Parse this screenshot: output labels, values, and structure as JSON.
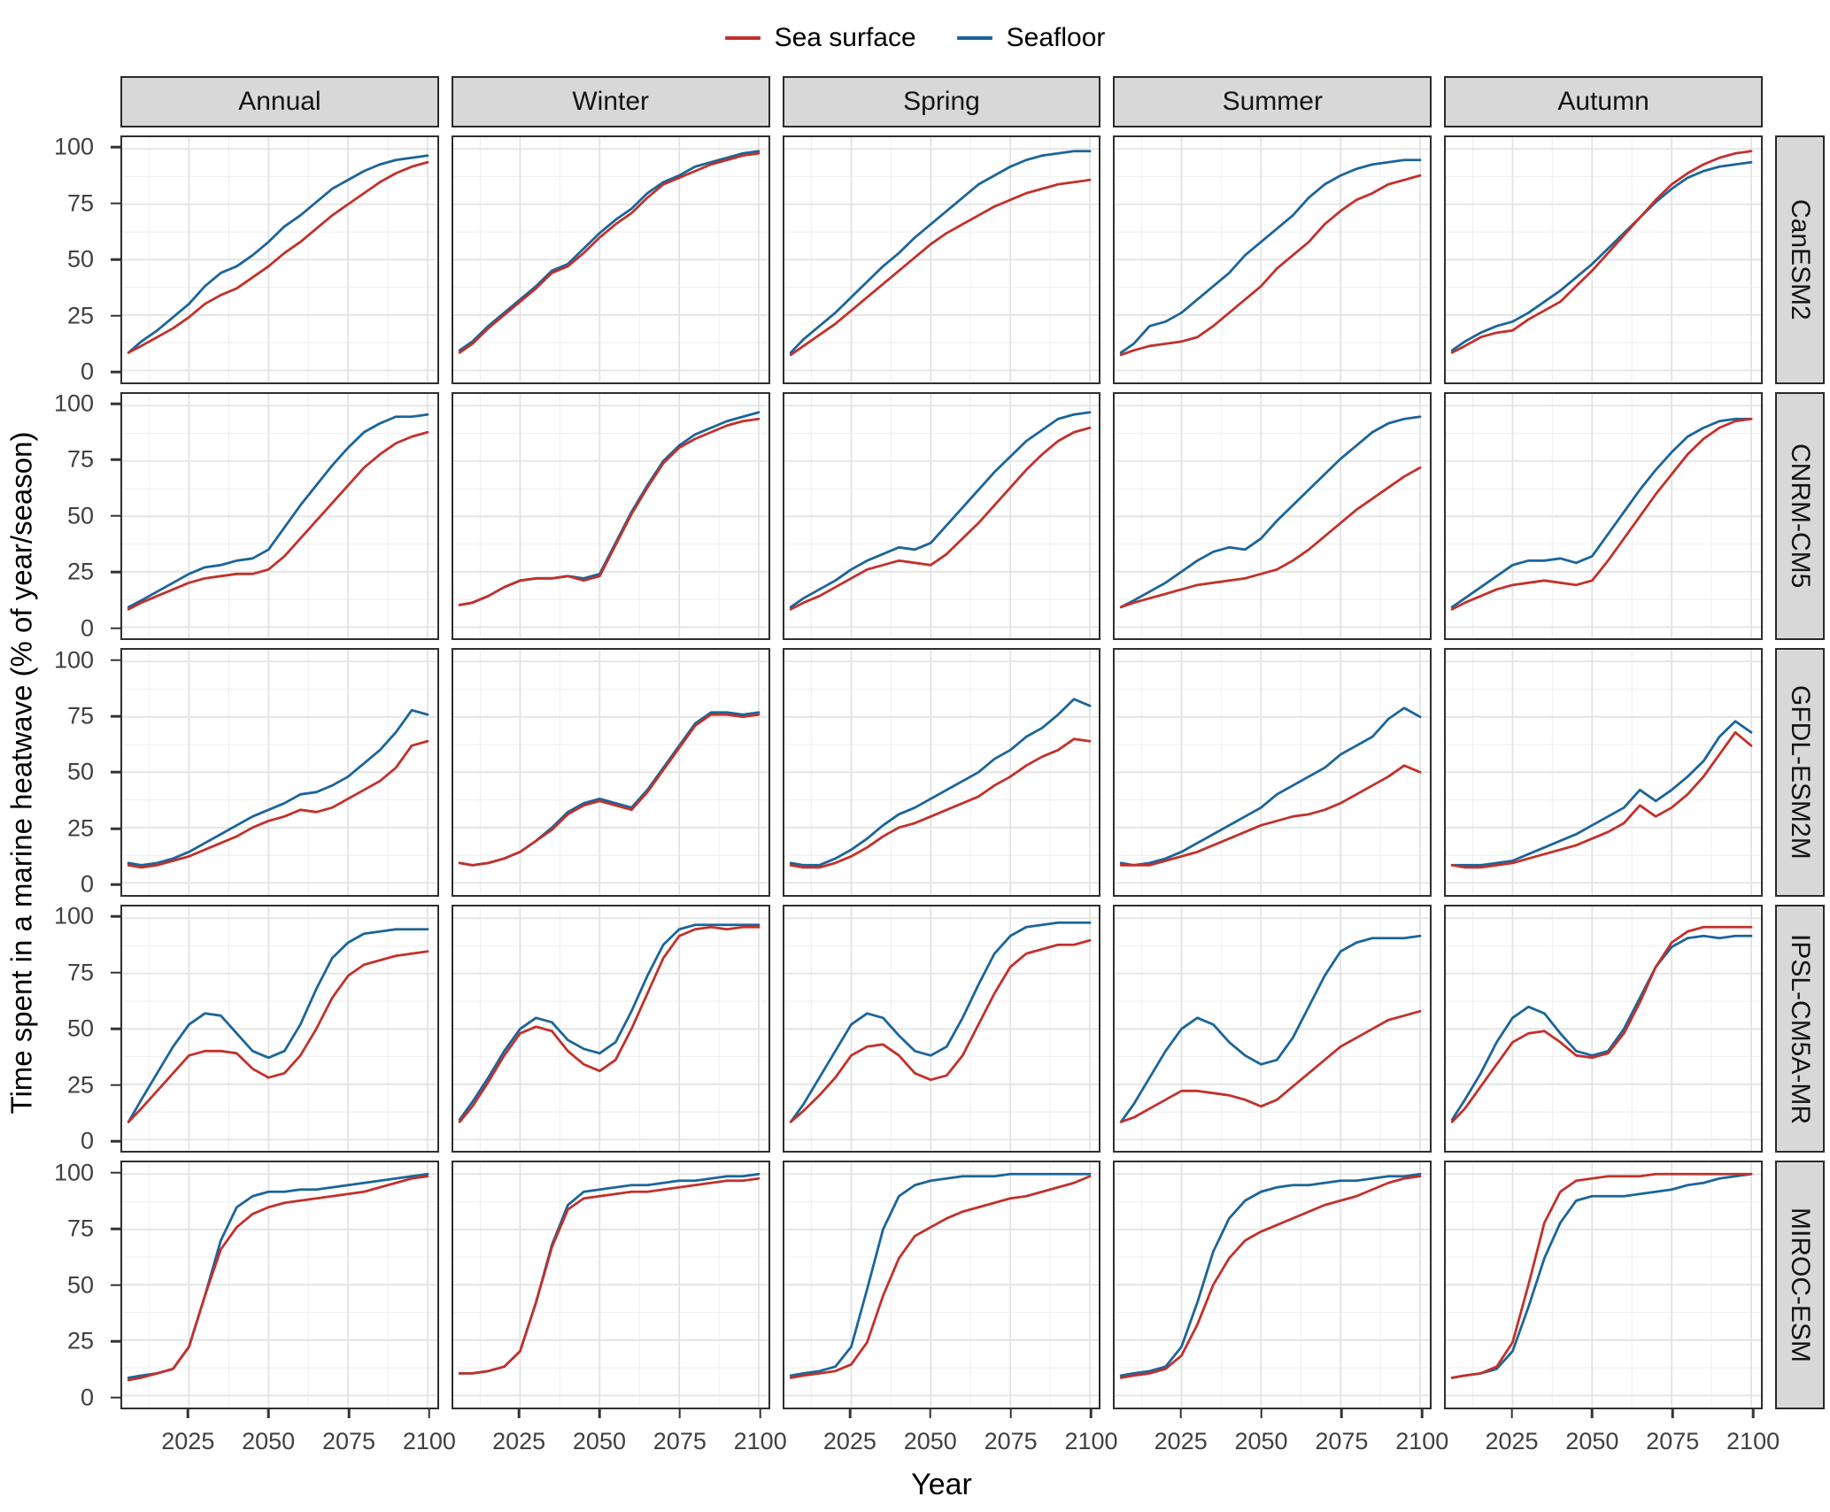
{
  "figure": {
    "x_title": "Year",
    "y_title": "Time spent in a marine heatwave (% of year/season)"
  },
  "chart_data": {
    "type": "line",
    "xlabel": "Year",
    "ylabel": "Time spent in a marine heatwave (% of year/season)",
    "facet_cols": [
      "Annual",
      "Winter",
      "Spring",
      "Summer",
      "Autumn"
    ],
    "facet_rows": [
      "CanESM2",
      "CNRM-CM5",
      "GFDL-ESM2M",
      "IPSL-CM5A-MR",
      "MIROC-ESM"
    ],
    "series": [
      {
        "id": "sea_surface",
        "label": "Sea surface",
        "color": "#c2312b"
      },
      {
        "id": "seafloor",
        "label": "Seafloor",
        "color": "#1b659a"
      }
    ],
    "x": [
      2006,
      2010,
      2015,
      2020,
      2025,
      2030,
      2035,
      2040,
      2045,
      2050,
      2055,
      2060,
      2065,
      2070,
      2075,
      2080,
      2085,
      2090,
      2095,
      2100
    ],
    "x_ticks": [
      2025,
      2050,
      2075,
      2100
    ],
    "y_ticks": [
      0,
      25,
      50,
      75,
      100
    ],
    "x_minor": [
      2012.5,
      2037.5,
      2062.5,
      2087.5
    ],
    "y_minor": [
      12.5,
      37.5,
      62.5,
      87.5
    ],
    "x_domain": [
      2004,
      2103
    ],
    "y_domain": [
      -5.3,
      105.3
    ],
    "grid": true,
    "legend_position": "top",
    "panels": [
      {
        "model": "CanESM2",
        "season": "Annual",
        "seafloor": [
          8,
          13,
          18,
          24,
          30,
          38,
          44,
          47,
          52,
          58,
          65,
          70,
          76,
          82,
          86,
          90,
          93,
          95,
          96,
          97
        ],
        "sea_surface": [
          8,
          11,
          15,
          19,
          24,
          30,
          34,
          37,
          42,
          47,
          53,
          58,
          64,
          70,
          75,
          80,
          85,
          89,
          92,
          94
        ]
      },
      {
        "model": "CanESM2",
        "season": "Winter",
        "seafloor": [
          9,
          13,
          20,
          26,
          32,
          38,
          45,
          48,
          55,
          62,
          68,
          73,
          80,
          85,
          88,
          92,
          94,
          96,
          98,
          99
        ],
        "sea_surface": [
          8,
          12,
          19,
          25,
          31,
          37,
          44,
          47,
          53,
          60,
          66,
          71,
          78,
          84,
          87,
          90,
          93,
          95,
          97,
          98
        ]
      },
      {
        "model": "CanESM2",
        "season": "Spring",
        "seafloor": [
          8,
          14,
          20,
          26,
          33,
          40,
          47,
          53,
          60,
          66,
          72,
          78,
          84,
          88,
          92,
          95,
          97,
          98,
          99,
          99
        ],
        "sea_surface": [
          7,
          11,
          16,
          21,
          27,
          33,
          39,
          45,
          51,
          57,
          62,
          66,
          70,
          74,
          77,
          80,
          82,
          84,
          85,
          86
        ]
      },
      {
        "model": "CanESM2",
        "season": "Summer",
        "seafloor": [
          8,
          12,
          20,
          22,
          26,
          32,
          38,
          44,
          52,
          58,
          64,
          70,
          78,
          84,
          88,
          91,
          93,
          94,
          95,
          95
        ],
        "sea_surface": [
          7,
          9,
          11,
          12,
          13,
          15,
          20,
          26,
          32,
          38,
          46,
          52,
          58,
          66,
          72,
          77,
          80,
          84,
          86,
          88
        ]
      },
      {
        "model": "CanESM2",
        "season": "Autumn",
        "seafloor": [
          9,
          13,
          17,
          20,
          22,
          26,
          31,
          36,
          42,
          48,
          55,
          62,
          69,
          76,
          82,
          87,
          90,
          92,
          93,
          94
        ],
        "sea_surface": [
          8,
          11,
          15,
          17,
          18,
          23,
          27,
          31,
          38,
          45,
          53,
          61,
          69,
          77,
          84,
          89,
          93,
          96,
          98,
          99
        ]
      },
      {
        "model": "CNRM-CM5",
        "season": "Annual",
        "seafloor": [
          9,
          12,
          16,
          20,
          24,
          27,
          28,
          30,
          31,
          35,
          45,
          55,
          64,
          73,
          81,
          88,
          92,
          95,
          95,
          96
        ],
        "sea_surface": [
          8,
          11,
          14,
          17,
          20,
          22,
          23,
          24,
          24,
          26,
          32,
          40,
          48,
          56,
          64,
          72,
          78,
          83,
          86,
          88
        ]
      },
      {
        "model": "CNRM-CM5",
        "season": "Winter",
        "seafloor": [
          10,
          11,
          14,
          18,
          21,
          22,
          22,
          23,
          22,
          24,
          38,
          52,
          64,
          75,
          82,
          87,
          90,
          93,
          95,
          97
        ],
        "sea_surface": [
          10,
          11,
          14,
          18,
          21,
          22,
          22,
          23,
          21,
          23,
          37,
          51,
          63,
          74,
          81,
          85,
          88,
          91,
          93,
          94
        ]
      },
      {
        "model": "CNRM-CM5",
        "season": "Spring",
        "seafloor": [
          9,
          13,
          17,
          21,
          26,
          30,
          33,
          36,
          35,
          38,
          46,
          54,
          62,
          70,
          77,
          84,
          89,
          94,
          96,
          97
        ],
        "sea_surface": [
          8,
          11,
          14,
          18,
          22,
          26,
          28,
          30,
          29,
          28,
          33,
          40,
          47,
          55,
          63,
          71,
          78,
          84,
          88,
          90
        ]
      },
      {
        "model": "CNRM-CM5",
        "season": "Summer",
        "seafloor": [
          9,
          12,
          16,
          20,
          25,
          30,
          34,
          36,
          35,
          40,
          48,
          55,
          62,
          69,
          76,
          82,
          88,
          92,
          94,
          95
        ],
        "sea_surface": [
          9,
          11,
          13,
          15,
          17,
          19,
          20,
          21,
          22,
          24,
          26,
          30,
          35,
          41,
          47,
          53,
          58,
          63,
          68,
          72
        ]
      },
      {
        "model": "CNRM-CM5",
        "season": "Autumn",
        "seafloor": [
          9,
          13,
          18,
          23,
          28,
          30,
          30,
          31,
          29,
          32,
          42,
          52,
          62,
          71,
          79,
          86,
          90,
          93,
          94,
          94
        ],
        "sea_surface": [
          8,
          11,
          14,
          17,
          19,
          20,
          21,
          20,
          19,
          21,
          30,
          40,
          50,
          60,
          69,
          78,
          85,
          90,
          93,
          94
        ]
      },
      {
        "model": "GFDL-ESM2M",
        "season": "Annual",
        "seafloor": [
          9,
          8,
          9,
          11,
          14,
          18,
          22,
          26,
          30,
          33,
          36,
          40,
          41,
          44,
          48,
          54,
          60,
          68,
          78,
          76
        ],
        "sea_surface": [
          8,
          7,
          8,
          10,
          12,
          15,
          18,
          21,
          25,
          28,
          30,
          33,
          32,
          34,
          38,
          42,
          46,
          52,
          62,
          64
        ]
      },
      {
        "model": "GFDL-ESM2M",
        "season": "Winter",
        "seafloor": [
          9,
          8,
          9,
          11,
          14,
          19,
          25,
          32,
          36,
          38,
          36,
          34,
          42,
          52,
          62,
          72,
          77,
          77,
          76,
          77
        ],
        "sea_surface": [
          9,
          8,
          9,
          11,
          14,
          19,
          24,
          31,
          35,
          37,
          35,
          33,
          41,
          51,
          61,
          71,
          76,
          76,
          75,
          76
        ]
      },
      {
        "model": "GFDL-ESM2M",
        "season": "Spring",
        "seafloor": [
          9,
          8,
          8,
          11,
          15,
          20,
          26,
          31,
          34,
          38,
          42,
          46,
          50,
          56,
          60,
          66,
          70,
          76,
          83,
          80
        ],
        "sea_surface": [
          8,
          7,
          7,
          9,
          12,
          16,
          21,
          25,
          27,
          30,
          33,
          36,
          39,
          44,
          48,
          53,
          57,
          60,
          65,
          64
        ]
      },
      {
        "model": "GFDL-ESM2M",
        "season": "Summer",
        "seafloor": [
          9,
          8,
          9,
          11,
          14,
          18,
          22,
          26,
          30,
          34,
          40,
          44,
          48,
          52,
          58,
          62,
          66,
          74,
          79,
          75
        ],
        "sea_surface": [
          8,
          8,
          8,
          10,
          12,
          14,
          17,
          20,
          23,
          26,
          28,
          30,
          31,
          33,
          36,
          40,
          44,
          48,
          53,
          50
        ]
      },
      {
        "model": "GFDL-ESM2M",
        "season": "Autumn",
        "seafloor": [
          8,
          8,
          8,
          9,
          10,
          13,
          16,
          19,
          22,
          26,
          30,
          34,
          42,
          37,
          42,
          48,
          55,
          66,
          73,
          68
        ],
        "sea_surface": [
          8,
          7,
          7,
          8,
          9,
          11,
          13,
          15,
          17,
          20,
          23,
          27,
          35,
          30,
          34,
          40,
          48,
          58,
          68,
          62
        ]
      },
      {
        "model": "IPSL-CM5A-MR",
        "season": "Annual",
        "seafloor": [
          8,
          18,
          30,
          42,
          52,
          57,
          56,
          48,
          40,
          37,
          40,
          52,
          68,
          82,
          89,
          93,
          94,
          95,
          95,
          95
        ],
        "sea_surface": [
          8,
          14,
          22,
          30,
          38,
          40,
          40,
          39,
          32,
          28,
          30,
          38,
          50,
          64,
          74,
          79,
          81,
          83,
          84,
          85
        ]
      },
      {
        "model": "IPSL-CM5A-MR",
        "season": "Winter",
        "seafloor": [
          9,
          17,
          28,
          40,
          50,
          55,
          53,
          45,
          41,
          39,
          44,
          58,
          74,
          88,
          95,
          97,
          97,
          97,
          97,
          97
        ],
        "sea_surface": [
          8,
          15,
          26,
          38,
          48,
          51,
          49,
          40,
          34,
          31,
          36,
          50,
          66,
          82,
          92,
          95,
          96,
          95,
          96,
          96
        ]
      },
      {
        "model": "IPSL-CM5A-MR",
        "season": "Spring",
        "seafloor": [
          8,
          16,
          28,
          40,
          52,
          57,
          55,
          47,
          40,
          38,
          42,
          55,
          70,
          84,
          92,
          96,
          97,
          98,
          98,
          98
        ],
        "sea_surface": [
          8,
          13,
          20,
          28,
          38,
          42,
          43,
          38,
          30,
          27,
          29,
          38,
          52,
          66,
          78,
          84,
          86,
          88,
          88,
          90
        ]
      },
      {
        "model": "IPSL-CM5A-MR",
        "season": "Summer",
        "seafloor": [
          8,
          16,
          28,
          40,
          50,
          55,
          52,
          44,
          38,
          34,
          36,
          46,
          60,
          74,
          85,
          89,
          91,
          91,
          91,
          92
        ],
        "sea_surface": [
          8,
          10,
          14,
          18,
          22,
          22,
          21,
          20,
          18,
          15,
          18,
          24,
          30,
          36,
          42,
          46,
          50,
          54,
          56,
          58
        ]
      },
      {
        "model": "IPSL-CM5A-MR",
        "season": "Autumn",
        "seafloor": [
          9,
          18,
          30,
          44,
          55,
          60,
          57,
          48,
          40,
          38,
          40,
          50,
          64,
          78,
          87,
          91,
          92,
          91,
          92,
          92
        ],
        "sea_surface": [
          8,
          14,
          24,
          34,
          44,
          48,
          49,
          44,
          38,
          37,
          39,
          48,
          62,
          78,
          89,
          94,
          96,
          96,
          96,
          96
        ]
      },
      {
        "model": "MIROC-ESM",
        "season": "Annual",
        "seafloor": [
          8,
          9,
          10,
          12,
          22,
          45,
          70,
          85,
          90,
          92,
          92,
          93,
          93,
          94,
          95,
          96,
          97,
          98,
          99,
          100
        ],
        "sea_surface": [
          7,
          8,
          10,
          12,
          22,
          45,
          66,
          76,
          82,
          85,
          87,
          88,
          89,
          90,
          91,
          92,
          94,
          96,
          98,
          99
        ]
      },
      {
        "model": "MIROC-ESM",
        "season": "Winter",
        "seafloor": [
          10,
          10,
          11,
          13,
          20,
          42,
          68,
          86,
          92,
          93,
          94,
          95,
          95,
          96,
          97,
          97,
          98,
          99,
          99,
          100
        ],
        "sea_surface": [
          10,
          10,
          11,
          13,
          20,
          42,
          67,
          84,
          89,
          90,
          91,
          92,
          92,
          93,
          94,
          95,
          96,
          97,
          97,
          98
        ]
      },
      {
        "model": "MIROC-ESM",
        "season": "Spring",
        "seafloor": [
          9,
          10,
          11,
          13,
          22,
          48,
          75,
          90,
          95,
          97,
          98,
          99,
          99,
          99,
          100,
          100,
          100,
          100,
          100,
          100
        ],
        "sea_surface": [
          8,
          9,
          10,
          11,
          14,
          24,
          45,
          62,
          72,
          76,
          80,
          83,
          85,
          87,
          89,
          90,
          92,
          94,
          96,
          99
        ]
      },
      {
        "model": "MIROC-ESM",
        "season": "Summer",
        "seafloor": [
          9,
          10,
          11,
          13,
          22,
          42,
          65,
          80,
          88,
          92,
          94,
          95,
          95,
          96,
          97,
          97,
          98,
          99,
          99,
          100
        ],
        "sea_surface": [
          8,
          9,
          10,
          12,
          18,
          32,
          50,
          62,
          70,
          74,
          77,
          80,
          83,
          86,
          88,
          90,
          93,
          96,
          98,
          99
        ]
      },
      {
        "model": "MIROC-ESM",
        "season": "Autumn",
        "seafloor": [
          8,
          9,
          10,
          12,
          20,
          40,
          62,
          78,
          88,
          90,
          90,
          90,
          91,
          92,
          93,
          95,
          96,
          98,
          99,
          100
        ],
        "sea_surface": [
          8,
          9,
          10,
          13,
          24,
          50,
          78,
          92,
          97,
          98,
          99,
          99,
          99,
          100,
          100,
          100,
          100,
          100,
          100,
          100
        ]
      }
    ]
  }
}
